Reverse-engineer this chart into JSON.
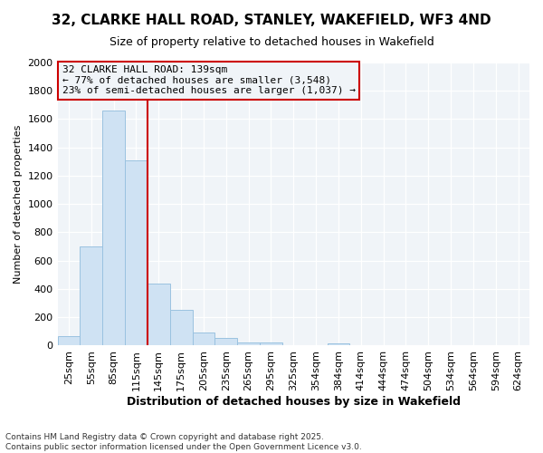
{
  "title1": "32, CLARKE HALL ROAD, STANLEY, WAKEFIELD, WF3 4ND",
  "title2": "Size of property relative to detached houses in Wakefield",
  "xlabel": "Distribution of detached houses by size in Wakefield",
  "ylabel": "Number of detached properties",
  "categories": [
    "25sqm",
    "55sqm",
    "85sqm",
    "115sqm",
    "145sqm",
    "175sqm",
    "205sqm",
    "235sqm",
    "265sqm",
    "295sqm",
    "325sqm",
    "354sqm",
    "384sqm",
    "414sqm",
    "444sqm",
    "474sqm",
    "504sqm",
    "534sqm",
    "564sqm",
    "594sqm",
    "624sqm"
  ],
  "values": [
    70,
    700,
    1660,
    1310,
    440,
    255,
    90,
    55,
    25,
    20,
    0,
    0,
    15,
    0,
    0,
    0,
    0,
    0,
    0,
    0,
    0
  ],
  "bar_color": "#cfe2f3",
  "bar_edge_color": "#9ac2e0",
  "annotation_line1": "32 CLARKE HALL ROAD: 139sqm",
  "annotation_line2": "← 77% of detached houses are smaller (3,548)",
  "annotation_line3": "23% of semi-detached houses are larger (1,037) →",
  "vline_color": "#cc0000",
  "annotation_box_edgecolor": "#cc0000",
  "background_color": "#ffffff",
  "plot_bg_color": "#f0f4f8",
  "ylim": [
    0,
    2000
  ],
  "yticks": [
    0,
    200,
    400,
    600,
    800,
    1000,
    1200,
    1400,
    1600,
    1800,
    2000
  ],
  "footnote1": "Contains HM Land Registry data © Crown copyright and database right 2025.",
  "footnote2": "Contains public sector information licensed under the Open Government Licence v3.0.",
  "title1_fontsize": 11,
  "title2_fontsize": 9,
  "xlabel_fontsize": 9,
  "ylabel_fontsize": 8,
  "tick_fontsize": 8,
  "ann_fontsize": 8
}
